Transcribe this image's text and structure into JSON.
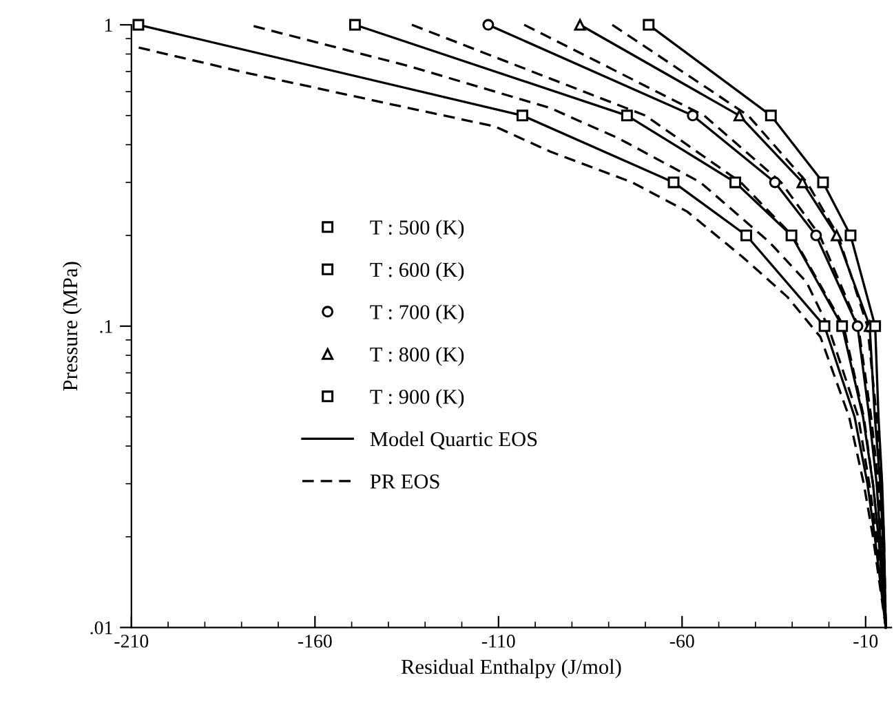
{
  "chart_data": {
    "type": "line",
    "xlabel": "Residual Enthalpy (J/mol)",
    "ylabel": "Pressure (MPa)",
    "log": "y",
    "xlim": [
      -210,
      -3
    ],
    "ylim": [
      0.01,
      1
    ],
    "xticks": [
      -210,
      -160,
      -110,
      -60,
      -10
    ],
    "yticks": [
      {
        "value": 0.01,
        "label": ".01"
      },
      {
        "value": 0.1,
        "label": ".1"
      },
      1
    ],
    "grid": false,
    "legend": "left",
    "series": [
      {
        "name": "T : 500 (K)",
        "type": "scatter",
        "marker": "square",
        "color": "#000000",
        "x": [
          -208.1,
          -103.5,
          -62.3,
          -42.5,
          -21.2
        ],
        "values": [
          1,
          0.5,
          0.3,
          0.2,
          0.1
        ]
      },
      {
        "name": "T : 600 (K)",
        "type": "scatter",
        "marker": "square",
        "color": "#000000",
        "x": [
          -149.1,
          -75.0,
          -45.5,
          -30.2,
          -16.4
        ],
        "values": [
          1,
          0.5,
          0.3,
          0.2,
          0.1
        ]
      },
      {
        "name": "T : 700 (K)",
        "type": "scatter",
        "marker": "circle",
        "color": "#000000",
        "x": [
          -112.8,
          -57.1,
          -34.7,
          -23.5,
          -12.2
        ],
        "values": [
          1,
          0.5,
          0.3,
          0.2,
          0.1
        ]
      },
      {
        "name": "T : 800 (K)",
        "type": "scatter",
        "marker": "triangle",
        "color": "#000000",
        "x": [
          -87.8,
          -44.4,
          -27.2,
          -17.9,
          -8.9
        ],
        "values": [
          1,
          0.5,
          0.3,
          0.2,
          0.1
        ]
      },
      {
        "name": "T : 900 (K)",
        "type": "scatter",
        "marker": "square",
        "color": "#000000",
        "x": [
          -69.1,
          -35.8,
          -21.6,
          -14.1,
          -7.4
        ],
        "values": [
          1,
          0.5,
          0.3,
          0.2,
          0.1
        ]
      },
      {
        "name": "Model Quartic EOS",
        "line_style": "solid",
        "color": "#000000",
        "x": [
          -208.1,
          -103.5,
          -62.3,
          -42.5,
          -21.2,
          -13,
          -9.5,
          -7.5,
          -4.5
        ],
        "values": [
          1,
          0.5,
          0.3,
          0.2,
          0.1,
          0.05,
          0.03,
          0.02,
          0.01
        ]
      },
      {
        "line_style": "solid",
        "color": "#000000",
        "x": [
          -149.1,
          -75.0,
          -45.5,
          -30.2,
          -16.4,
          -10.7,
          -8,
          -6.5,
          -4.5
        ],
        "values": [
          1,
          0.5,
          0.3,
          0.2,
          0.1,
          0.05,
          0.03,
          0.02,
          0.01
        ]
      },
      {
        "line_style": "solid",
        "color": "#000000",
        "x": [
          -112.8,
          -57.1,
          -34.7,
          -23.5,
          -12.2,
          -9,
          -7,
          -6,
          -4.5
        ],
        "values": [
          1,
          0.5,
          0.3,
          0.2,
          0.1,
          0.05,
          0.03,
          0.02,
          0.01
        ]
      },
      {
        "line_style": "solid",
        "color": "#000000",
        "x": [
          -87.8,
          -44.4,
          -27.2,
          -17.9,
          -8.9,
          -7.5,
          -6,
          -5.3,
          -4.5
        ],
        "values": [
          1,
          0.5,
          0.3,
          0.2,
          0.1,
          0.05,
          0.03,
          0.02,
          0.01
        ]
      },
      {
        "line_style": "solid",
        "color": "#000000",
        "x": [
          -69.1,
          -35.8,
          -21.6,
          -14.1,
          -7.4,
          -6.5,
          -5.5,
          -5,
          -4.5
        ],
        "values": [
          1,
          0.5,
          0.3,
          0.2,
          0.1,
          0.05,
          0.03,
          0.02,
          0.01
        ]
      },
      {
        "name": "PR EOS",
        "line_style": "dashed",
        "color": "#000000",
        "x": [
          -208,
          -178,
          -140.8,
          -111,
          -96,
          -73.6,
          -58.6,
          -43.6,
          -31.3,
          -22.3,
          -14.5,
          -10.5,
          -8,
          -4.5
        ],
        "values": [
          0.84,
          0.69,
          0.55,
          0.46,
          0.38,
          0.3,
          0.24,
          0.17,
          0.125,
          0.092,
          0.05,
          0.03,
          0.02,
          0.01
        ]
      },
      {
        "line_style": "dashed",
        "color": "#000000",
        "x": [
          -176.7,
          -134.5,
          -96,
          -77.3,
          -55,
          -36.2,
          -26.1,
          -20.1,
          -12,
          -9,
          -7,
          -4.5
        ],
        "values": [
          0.99,
          0.73,
          0.53,
          0.42,
          0.3,
          0.19,
          0.14,
          0.099,
          0.05,
          0.03,
          0.02,
          0.01
        ]
      },
      {
        "line_style": "dashed",
        "color": "#000000",
        "x": [
          -133.6,
          -70,
          -44,
          -30,
          -16,
          -10.5,
          -8,
          -6.5,
          -4.5
        ],
        "values": [
          1,
          0.5,
          0.3,
          0.2,
          0.1,
          0.05,
          0.03,
          0.02,
          0.01
        ]
      },
      {
        "line_style": "dashed",
        "color": "#000000",
        "x": [
          -103,
          -54,
          -33,
          -22.5,
          -12,
          -8.5,
          -6.5,
          -5.5,
          -4.5
        ],
        "values": [
          1,
          0.5,
          0.3,
          0.2,
          0.1,
          0.05,
          0.03,
          0.02,
          0.01
        ]
      },
      {
        "line_style": "dashed",
        "color": "#000000",
        "x": [
          -79,
          -42,
          -26,
          -17.5,
          -9.5,
          -7,
          -6,
          -5,
          -4.5
        ],
        "values": [
          1,
          0.5,
          0.3,
          0.2,
          0.1,
          0.05,
          0.03,
          0.02,
          0.01
        ]
      }
    ]
  }
}
